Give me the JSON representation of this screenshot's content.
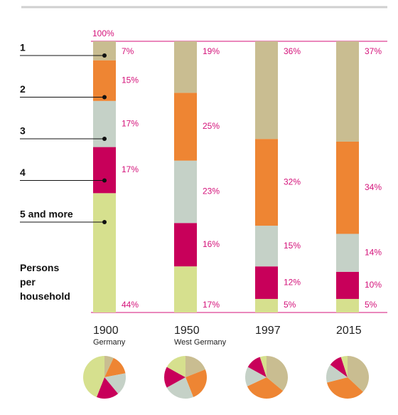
{
  "chart_data": {
    "type": "stacked_bar_percent",
    "legend_title": "Persons per household",
    "categories": [
      "1900",
      "1950",
      "1997",
      "2015"
    ],
    "category_notes": [
      "Germany",
      "West Germany",
      null,
      null
    ],
    "ylim": [
      0,
      100
    ],
    "yticks": [
      {
        "value": 100,
        "label": "100%"
      }
    ],
    "series": [
      {
        "name": "1",
        "color": "#c9bd91",
        "values": [
          7,
          19,
          36,
          37
        ],
        "value_labels": [
          "7%",
          "19%",
          "36%",
          "37%"
        ]
      },
      {
        "name": "2",
        "color": "#ee8533",
        "values": [
          15,
          25,
          32,
          34
        ],
        "value_labels": [
          "15%",
          "25%",
          "32%",
          "34%"
        ]
      },
      {
        "name": "3",
        "color": "#c5d1c7",
        "values": [
          17,
          23,
          15,
          14
        ],
        "value_labels": [
          "17%",
          "23%",
          "15%",
          "14%"
        ]
      },
      {
        "name": "4",
        "color": "#c8005a",
        "values": [
          17,
          16,
          12,
          10
        ],
        "value_labels": [
          "17%",
          "16%",
          "12%",
          "10%"
        ]
      },
      {
        "name": "5 and more",
        "color": "#d6e08e",
        "values": [
          44,
          17,
          5,
          5
        ],
        "value_labels": [
          "44%",
          "17%",
          "5%",
          "5%"
        ]
      }
    ]
  }
}
